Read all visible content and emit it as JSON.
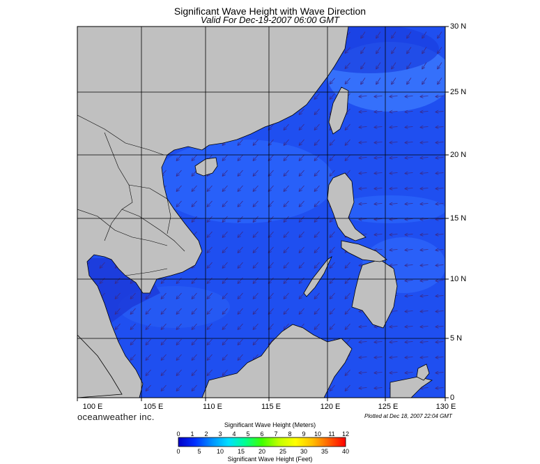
{
  "title": "Significant Wave Height with Wave Direction",
  "subtitle": "Valid For Dec-19-2007 06:00 GMT",
  "brand": "oceanweather inc.",
  "plotted": "Plotted at Dec 18, 2007 22:04 GMT",
  "map": {
    "lon_labels": [
      "100 E",
      "105 E",
      "110 E",
      "115 E",
      "120 E",
      "125 E",
      "130 E"
    ],
    "lat_labels": [
      "30 N",
      "25 N",
      "20 N",
      "15 N",
      "10 N",
      "5 N",
      "0"
    ],
    "colors": {
      "land": "#c0c0c0",
      "sea_base": "#1f4ff0",
      "arrow": "#3a2a8a",
      "grid": "#000000"
    }
  },
  "colorbar": {
    "title_meters": "Significant Wave Height (Meters)",
    "title_feet": "Significant Wave Height (Feet)",
    "meters_ticks": [
      "0",
      "1",
      "2",
      "3",
      "4",
      "5",
      "6",
      "7",
      "8",
      "9",
      "10",
      "11",
      "12"
    ],
    "feet_ticks": [
      "0",
      "5",
      "10",
      "15",
      "20",
      "25",
      "30",
      "35",
      "40"
    ],
    "gradient": [
      "#0000c8",
      "#0030ff",
      "#0090ff",
      "#00e0ff",
      "#00ff90",
      "#40ff00",
      "#c0ff00",
      "#ffff00",
      "#ffc000",
      "#ff6000",
      "#ff0000"
    ]
  }
}
